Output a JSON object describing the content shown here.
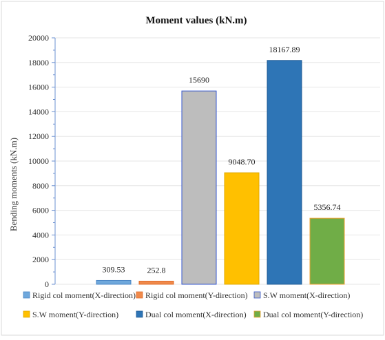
{
  "chart_data": {
    "type": "bar",
    "title": "Moment values (kN.m)",
    "xlabel": "",
    "ylabel": "Bending moments (kN.m)",
    "ylim": [
      0,
      20000
    ],
    "yticks": [
      0,
      2000,
      4000,
      6000,
      8000,
      10000,
      12000,
      14000,
      16000,
      18000,
      20000
    ],
    "grid": true,
    "legend_position": "bottom",
    "series": [
      {
        "name": "Rigid col moment(X-direction)",
        "value": 309.53,
        "label": "309.53",
        "color": "#6fa8dc",
        "border": "#4a86c5"
      },
      {
        "name": "Rigid col moment(Y-direction)",
        "value": 252.8,
        "label": "252.8",
        "color": "#f08a4b",
        "border": "#e06c2a"
      },
      {
        "name": "S.W moment(X-direction)",
        "value": 15690,
        "label": "15690",
        "color": "#bdbdbd",
        "border": "#3355cc"
      },
      {
        "name": "S.W moment(Y-direction)",
        "value": 9048.7,
        "label": "9048.70",
        "color": "#ffc000",
        "border": "#e0a800"
      },
      {
        "name": "Dual col moment(X-direction)",
        "value": 18167.89,
        "label": "18167.89",
        "color": "#2e75b6",
        "border": "#1f5a94"
      },
      {
        "name": "Dual col moment(Y-direction)",
        "value": 5356.74,
        "label": "5356.74",
        "color": "#70ad47",
        "border": "#f0a030"
      }
    ]
  }
}
